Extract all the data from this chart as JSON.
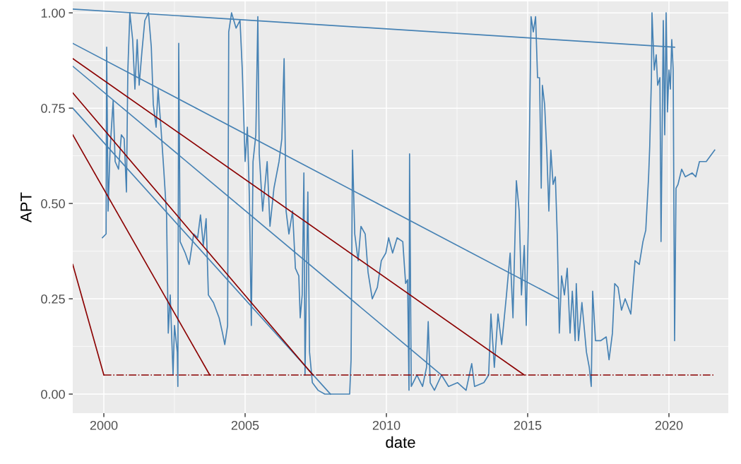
{
  "chart_data": {
    "type": "line",
    "xlabel": "date",
    "ylabel": "APT",
    "xlim": [
      1998.9,
      2022.1
    ],
    "ylim": [
      -0.05,
      1.03
    ],
    "xticks": [
      2000,
      2005,
      2010,
      2015,
      2020
    ],
    "yticks": [
      {
        "value": 0,
        "label": "0.00"
      },
      {
        "value": 0.25,
        "label": "0.25"
      },
      {
        "value": 0.5,
        "label": "0.50"
      },
      {
        "value": 0.75,
        "label": "0.75"
      },
      {
        "value": 1,
        "label": "1.00"
      }
    ],
    "grid": true,
    "series": [
      {
        "color": "#4682b4",
        "x": [
          1999.95,
          2000.08,
          2000.1,
          2000.15,
          2000.22,
          2000.33,
          2000.4,
          2000.52,
          2000.62,
          2000.72,
          2000.8,
          2000.85,
          2000.92,
          2001.02,
          2001.1,
          2001.18,
          2001.25,
          2001.35,
          2001.45,
          2001.58,
          2001.68,
          2001.75,
          2001.85,
          2001.92,
          2002.02,
          2002.12,
          2002.22,
          2002.28,
          2002.35,
          2002.45,
          2002.5,
          2002.6,
          2002.62,
          2002.65,
          2002.7,
          2002.88,
          2003.02,
          2003.18,
          2003.32,
          2003.42,
          2003.52,
          2003.62,
          2003.7,
          2003.88,
          2004.08,
          2004.2,
          2004.28,
          2004.38,
          2004.42,
          2004.52,
          2004.68,
          2004.82,
          2004.9,
          2005.0,
          2005.08,
          2005.15,
          2005.22,
          2005.28,
          2005.38,
          2005.45,
          2005.5,
          2005.62,
          2005.78,
          2005.88,
          2006.02,
          2006.2,
          2006.3,
          2006.38,
          2006.45,
          2006.55,
          2006.68,
          2006.78,
          2006.9,
          2006.95,
          2007.02,
          2007.08,
          2007.12,
          2007.22,
          2007.28,
          2007.38,
          2007.58,
          2007.82,
          2008.7,
          2008.75,
          2008.8,
          2008.88,
          2009.0,
          2009.1,
          2009.25,
          2009.35,
          2009.5,
          2009.68,
          2009.82,
          2009.98,
          2010.08,
          2010.22,
          2010.38,
          2010.58,
          2010.68,
          2010.75,
          2010.8,
          2010.82,
          2010.88,
          2011.08,
          2011.28,
          2011.42,
          2011.48,
          2011.55,
          2011.7,
          2011.95,
          2012.2,
          2012.52,
          2012.82,
          2013.02,
          2013.12,
          2013.45,
          2013.62,
          2013.7,
          2013.82,
          2013.95,
          2014.08,
          2014.25,
          2014.38,
          2014.48,
          2014.6,
          2014.7,
          2014.78,
          2014.88,
          2014.95,
          2015.02,
          2015.12,
          2015.2,
          2015.28,
          2015.35,
          2015.42,
          2015.48,
          2015.52,
          2015.6,
          2015.68,
          2015.75,
          2015.82,
          2015.9,
          2015.98,
          2016.05,
          2016.12,
          2016.2,
          2016.3,
          2016.4,
          2016.5,
          2016.58,
          2016.68,
          2016.72,
          2016.8,
          2016.92,
          2017.08,
          2017.18,
          2017.25,
          2017.3,
          2017.4,
          2017.58,
          2017.78,
          2017.88,
          2018.0,
          2018.08,
          2018.2,
          2018.32,
          2018.45,
          2018.65,
          2018.8,
          2018.95,
          2019.08,
          2019.18,
          2019.28,
          2019.32,
          2019.38,
          2019.4,
          2019.48,
          2019.55,
          2019.6,
          2019.68,
          2019.72,
          2019.8,
          2019.85,
          2019.9,
          2019.95,
          2020.0,
          2020.05,
          2020.1,
          2020.15,
          2020.2,
          2020.25,
          2020.32,
          2020.45,
          2020.58,
          2020.82,
          2020.95,
          2021.08,
          2021.32,
          2021.62
        ],
        "values": [
          0.41,
          0.42,
          0.91,
          0.48,
          0.64,
          0.77,
          0.61,
          0.59,
          0.68,
          0.67,
          0.53,
          0.85,
          1.0,
          0.93,
          0.8,
          0.93,
          0.81,
          0.9,
          0.98,
          1.0,
          0.91,
          0.76,
          0.7,
          0.8,
          0.7,
          0.59,
          0.47,
          0.16,
          0.26,
          0.05,
          0.18,
          0.11,
          0.02,
          0.92,
          0.4,
          0.37,
          0.34,
          0.42,
          0.41,
          0.47,
          0.39,
          0.46,
          0.26,
          0.24,
          0.2,
          0.16,
          0.13,
          0.18,
          0.95,
          1.0,
          0.96,
          0.98,
          0.85,
          0.61,
          0.7,
          0.52,
          0.18,
          0.61,
          0.68,
          0.99,
          0.63,
          0.48,
          0.61,
          0.44,
          0.54,
          0.61,
          0.67,
          0.88,
          0.48,
          0.42,
          0.48,
          0.33,
          0.31,
          0.2,
          0.26,
          0.58,
          0.05,
          0.53,
          0.11,
          0.03,
          0.01,
          0.0,
          0.0,
          0.09,
          0.64,
          0.42,
          0.35,
          0.44,
          0.42,
          0.32,
          0.25,
          0.28,
          0.35,
          0.37,
          0.41,
          0.37,
          0.41,
          0.4,
          0.29,
          0.3,
          0.01,
          0.63,
          0.02,
          0.05,
          0.02,
          0.07,
          0.19,
          0.03,
          0.01,
          0.05,
          0.02,
          0.03,
          0.01,
          0.08,
          0.02,
          0.03,
          0.05,
          0.21,
          0.07,
          0.21,
          0.13,
          0.26,
          0.37,
          0.2,
          0.56,
          0.48,
          0.26,
          0.39,
          0.18,
          0.44,
          0.99,
          0.95,
          0.99,
          0.83,
          0.83,
          0.54,
          0.81,
          0.76,
          0.63,
          0.48,
          0.64,
          0.55,
          0.57,
          0.41,
          0.16,
          0.31,
          0.26,
          0.33,
          0.16,
          0.27,
          0.14,
          0.29,
          0.14,
          0.24,
          0.11,
          0.07,
          0.02,
          0.27,
          0.14,
          0.14,
          0.15,
          0.09,
          0.16,
          0.29,
          0.28,
          0.22,
          0.25,
          0.21,
          0.35,
          0.34,
          0.4,
          0.43,
          0.57,
          0.65,
          0.83,
          1.0,
          0.85,
          0.89,
          0.81,
          0.83,
          0.4,
          0.98,
          0.68,
          1.0,
          0.74,
          0.85,
          0.8,
          0.93,
          0.85,
          0.14,
          0.54,
          0.55,
          0.59,
          0.57,
          0.58,
          0.57,
          0.61,
          0.61,
          0.64
        ]
      },
      {
        "color": "#4682b4",
        "x": [
          1998.9,
          2020.2
        ],
        "values": [
          1.01,
          0.91
        ]
      },
      {
        "color": "#4682b4",
        "x": [
          1998.9,
          2016.1
        ],
        "values": [
          0.92,
          0.25
        ]
      },
      {
        "color": "#4682b4",
        "x": [
          1998.9,
          2011.95
        ],
        "values": [
          0.86,
          0.05
        ]
      },
      {
        "color": "#4682b4",
        "x": [
          1998.9,
          2008.02
        ],
        "values": [
          0.75,
          0.0
        ]
      },
      {
        "color": "#8b0000",
        "x": [
          1998.9,
          2014.88
        ],
        "values": [
          0.88,
          0.05
        ]
      },
      {
        "color": "#8b0000",
        "x": [
          1998.9,
          2007.4
        ],
        "values": [
          0.79,
          0.05
        ]
      },
      {
        "color": "#8b0000",
        "x": [
          1998.9,
          2003.75
        ],
        "values": [
          0.68,
          0.05
        ]
      },
      {
        "color": "#8b0000",
        "x": [
          1998.9,
          2000.0
        ],
        "values": [
          0.34,
          0.05
        ]
      },
      {
        "color": "#8b0000",
        "x": [
          2000.0,
          2021.6
        ],
        "values": [
          0.05,
          0.05
        ],
        "line_style": "dashdot"
      }
    ]
  }
}
